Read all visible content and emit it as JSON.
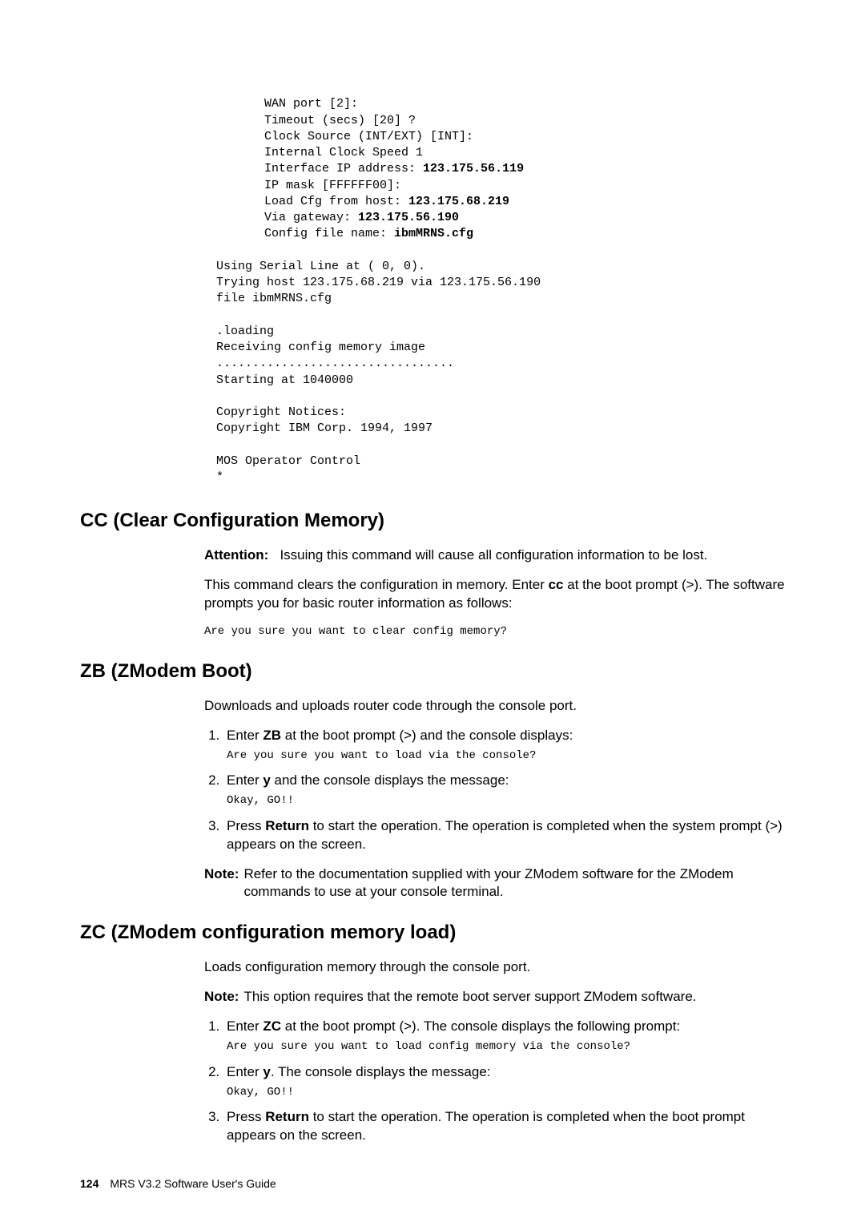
{
  "terminal": {
    "line1": "WAN port [2]:",
    "line2": "Timeout (secs) [20] ?",
    "line3": "Clock Source (INT/EXT) [INT]:",
    "line4": "Internal Clock Speed 1",
    "line5a": "Interface IP address: ",
    "line5b": "123.175.56.119",
    "line6": "IP mask [FFFFFF00]:",
    "line7a": "Load Cfg from host: ",
    "line7b": "123.175.68.219",
    "line8a": "Via gateway: ",
    "line8b": "123.175.56.190",
    "line9a": "Config file name: ",
    "line9b": "ibmMRNS.cfg",
    "line10": "Using Serial Line at ( 0, 0).",
    "line11": "Trying host 123.175.68.219 via 123.175.56.190",
    "line12": "file ibmMRNS.cfg",
    "line13": ".loading",
    "line14": "Receiving config memory image",
    "line15": ".................................",
    "line16": "Starting at 1040000",
    "line17": "Copyright Notices:",
    "line18": "Copyright IBM Corp. 1994, 1997",
    "line19": "MOS Operator Control",
    "line20": "*"
  },
  "cc": {
    "heading": "CC (Clear Configuration Memory)",
    "attention_label": "Attention:",
    "attention_text": "Issuing this command will cause all configuration information to be lost.",
    "para1a": "This command clears the configuration in memory. Enter ",
    "para1b": "cc",
    "para1c": " at the boot prompt (>). The software prompts you for basic router information as follows:",
    "prompt": "Are you sure you want to clear config memory?"
  },
  "zb": {
    "heading": "ZB (ZModem Boot)",
    "intro": "Downloads and uploads router code through the console port.",
    "step1a": "Enter ",
    "step1b": "ZB",
    "step1c": " at the boot prompt (>) and the console displays:",
    "step1_prompt": "Are you sure you want to load via the console?",
    "step2a": "Enter ",
    "step2b": "y",
    "step2c": " and the console displays the message:",
    "step2_prompt": "Okay, GO!!",
    "step3a": "Press ",
    "step3b": "Return",
    "step3c": " to start the operation. The operation is completed when the system prompt (>) appears on the screen.",
    "note_label": "Note:",
    "note_text": "Refer to the documentation supplied with your ZModem software for the ZModem commands to use at your console terminal."
  },
  "zc": {
    "heading": "ZC (ZModem configuration memory load)",
    "intro": "Loads configuration memory through the console port.",
    "note_label": "Note:",
    "note_text": "This option requires that the remote boot server support ZModem software.",
    "step1a": "Enter ",
    "step1b": "ZC",
    "step1c": " at the boot prompt (>). The console displays the following prompt:",
    "step1_prompt": "Are you sure you want to load config memory via the console?",
    "step2a": "Enter ",
    "step2b": "y",
    "step2c": ". The console displays the message:",
    "step2_prompt": "Okay, GO!!",
    "step3a": "Press ",
    "step3b": "Return",
    "step3c": " to start the operation. The operation is completed when the boot prompt appears on the screen."
  },
  "footer": {
    "page_number": "124",
    "book_title": "MRS V3.2 Software User's Guide"
  }
}
